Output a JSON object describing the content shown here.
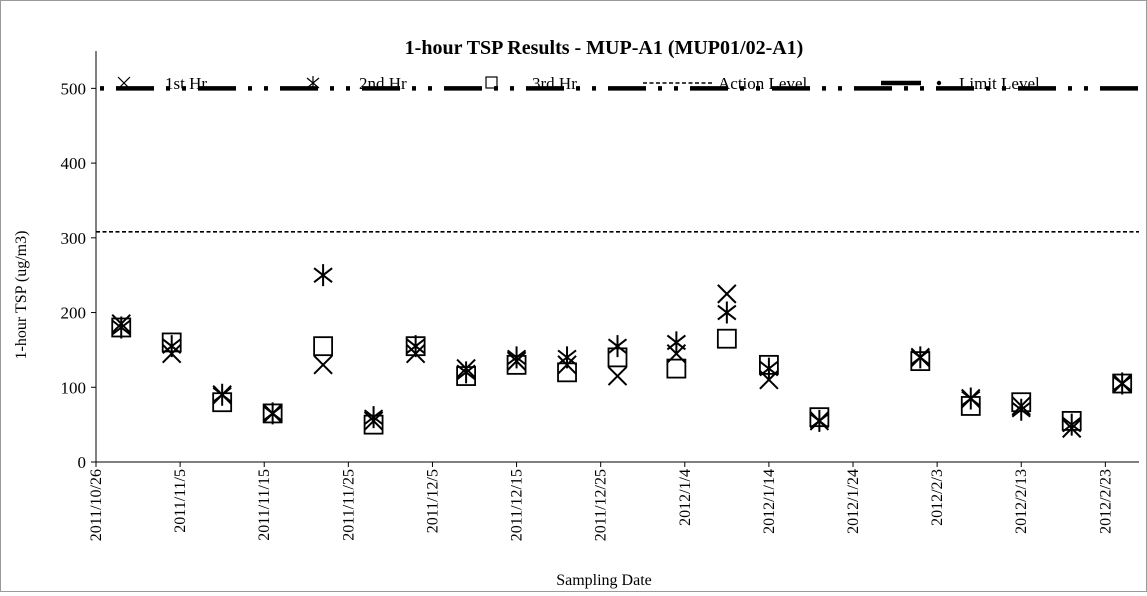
{
  "chart_data": {
    "type": "scatter",
    "title": "1-hour TSP Results - MUP-A1 (MUP01/02-A1)",
    "xlabel": "Sampling Date",
    "ylabel": "1-hour TSP (ug/m3)",
    "ylim": [
      0,
      550
    ],
    "yticks": [
      0,
      100,
      200,
      300,
      400,
      500
    ],
    "xlim": [
      "2011-10-26",
      "2012-02-27"
    ],
    "xticks": [
      "2011/10/26",
      "2011/11/5",
      "2011/11/15",
      "2011/11/25",
      "2011/12/5",
      "2011/12/15",
      "2011/12/25",
      "2012/1/4",
      "2012/1/14",
      "2012/1/24",
      "2012/2/3",
      "2012/2/13",
      "2012/2/23"
    ],
    "grid": false,
    "legend_position": "top",
    "x": [
      "2011-10-29",
      "2011-11-04",
      "2011-11-10",
      "2011-11-16",
      "2011-11-22",
      "2011-11-28",
      "2011-12-03",
      "2011-12-09",
      "2011-12-15",
      "2011-12-21",
      "2011-12-27",
      "2012-01-03",
      "2012-01-09",
      "2012-01-14",
      "2012-01-20",
      "2012-02-01",
      "2012-02-07",
      "2012-02-13",
      "2012-02-19",
      "2012-02-25"
    ],
    "series": [
      {
        "name": "1st Hr",
        "marker": "x",
        "values": [
          185,
          145,
          90,
          65,
          130,
          55,
          145,
          125,
          135,
          130,
          115,
          145,
          225,
          110,
          55,
          140,
          85,
          75,
          45,
          105
        ]
      },
      {
        "name": "2nd Hr",
        "marker": "star",
        "values": [
          180,
          155,
          90,
          65,
          250,
          60,
          155,
          120,
          140,
          140,
          155,
          160,
          200,
          125,
          55,
          140,
          85,
          70,
          50,
          105
        ]
      },
      {
        "name": "3rd Hr",
        "marker": "square",
        "values": [
          180,
          160,
          80,
          65,
          155,
          50,
          155,
          115,
          130,
          120,
          140,
          125,
          165,
          130,
          60,
          135,
          75,
          80,
          55,
          105
        ]
      }
    ],
    "lines": [
      {
        "name": "Action Level",
        "value": 308,
        "style": "dashed"
      },
      {
        "name": "Limit Level",
        "value": 500,
        "style": "dash-dot"
      }
    ]
  }
}
